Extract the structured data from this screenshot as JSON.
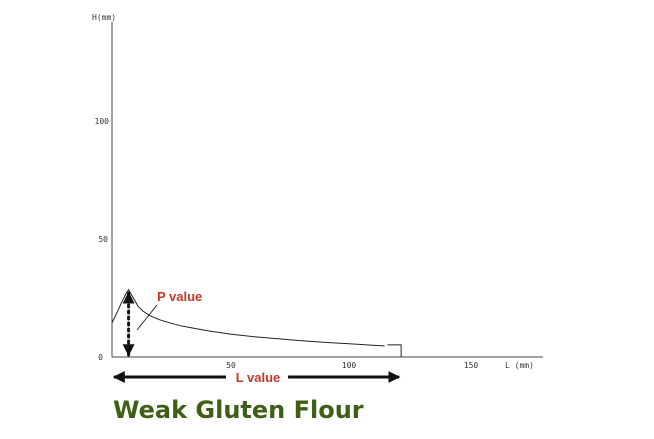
{
  "chart_data": {
    "type": "line",
    "title": "Weak Gluten Flour",
    "xlabel": "L (mm)",
    "ylabel": "H(mm)",
    "xlim": [
      0,
      175
    ],
    "ylim": [
      0,
      135
    ],
    "x_ticks": [
      "50",
      "100",
      "150"
    ],
    "y_ticks": [
      "0",
      "50",
      "100"
    ],
    "grid": false,
    "legend": "none",
    "series": [
      {
        "x": [
          0,
          2,
          4,
          6,
          7,
          9,
          11,
          13,
          16,
          20,
          25,
          30,
          40,
          50,
          60,
          70,
          80,
          90,
          100,
          110,
          115
        ],
        "y": [
          14.5,
          18.5,
          23,
          27,
          28.5,
          25,
          21.5,
          19.5,
          17.5,
          15.8,
          14.3,
          13.0,
          11.2,
          9.7,
          8.6,
          7.7,
          6.9,
          6.2,
          5.6,
          5.0,
          4.7
        ]
      }
    ],
    "annotations": {
      "p_value": {
        "label": "P value",
        "x": 7,
        "y": 28.5
      },
      "l_value": {
        "label": "L value",
        "x_from": 0,
        "x_to": 122
      }
    },
    "colors": {
      "curve": "#222222",
      "axis": "#444444",
      "annotation_text": "#c0392b",
      "arrow": "#111111",
      "caption": "#3f5f16"
    }
  }
}
